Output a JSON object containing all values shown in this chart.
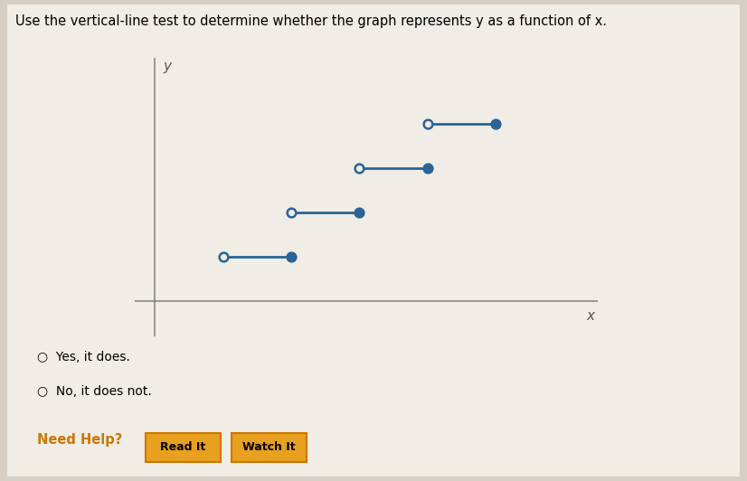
{
  "background_color": "#d6cfc6",
  "panel_color": "#f0ece6",
  "question_text": "Use the vertical-line test to determine whether the graph represents y as a function of x.",
  "question_fontsize": 10.5,
  "segments": [
    {
      "x_open": 1,
      "x_closed": 2,
      "y": 1
    },
    {
      "x_open": 2,
      "x_closed": 3,
      "y": 2
    },
    {
      "x_open": 3,
      "x_closed": 4,
      "y": 3
    },
    {
      "x_open": 4,
      "x_closed": 5,
      "y": 4
    }
  ],
  "line_color": "#2a6496",
  "open_marker_facecolor": "#f0ece6",
  "closed_marker_facecolor": "#2a6496",
  "marker_size": 7,
  "marker_edge_width": 1.8,
  "line_width": 2.0,
  "xlim": [
    -0.3,
    6.5
  ],
  "ylim": [
    -0.8,
    5.5
  ],
  "xlabel": "x",
  "ylabel": "y",
  "axis_color": "#888888",
  "axis_lw": 1.2,
  "option1": "Yes, it does.",
  "option2": "No, it does not.",
  "need_help_color": "#cc7700",
  "need_help_text": "Need Help?",
  "button1": "Read It",
  "button2": "Watch It",
  "button_color": "#e8a020",
  "button_edge_color": "#cc7700"
}
